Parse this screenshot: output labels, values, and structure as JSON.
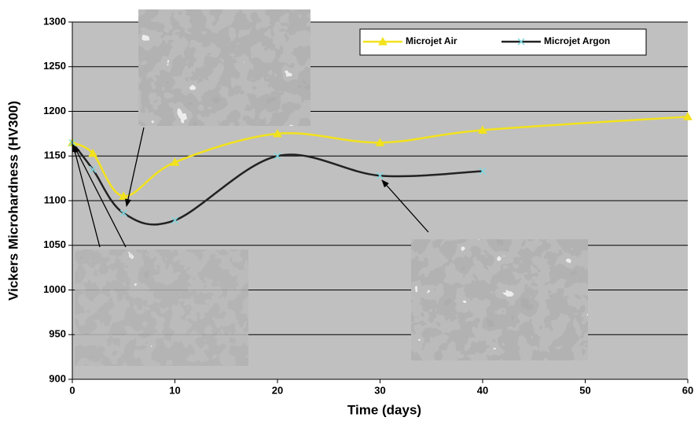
{
  "chart_data": {
    "type": "line",
    "x_label": "Time (days)",
    "y_label": "Vickers Microhardness (HV300)",
    "xlim": [
      0,
      60
    ],
    "xticks": [
      0,
      10,
      20,
      30,
      40,
      50,
      60
    ],
    "ylim": [
      900,
      1300
    ],
    "yticks": [
      900,
      950,
      1000,
      1050,
      1100,
      1150,
      1200,
      1250,
      1300
    ],
    "grid": true,
    "legend": "upper right",
    "series": [
      {
        "name": "Microjet Air",
        "color": "#f2e21c",
        "marker": "triangle",
        "marker_color": "#f2e21c",
        "x": [
          0,
          2,
          5,
          10,
          20,
          30,
          40,
          60
        ],
        "values": [
          1165,
          1153,
          1105,
          1143,
          1175,
          1165,
          1179,
          1194
        ]
      },
      {
        "name": "Microjet Argon",
        "color": "#222222",
        "marker": "x",
        "marker_color": "#7fd8e0",
        "x": [
          0,
          2,
          5,
          10,
          20,
          30,
          40
        ],
        "values": [
          1165,
          1135,
          1086,
          1078,
          1150,
          1128,
          1133
        ]
      }
    ]
  }
}
